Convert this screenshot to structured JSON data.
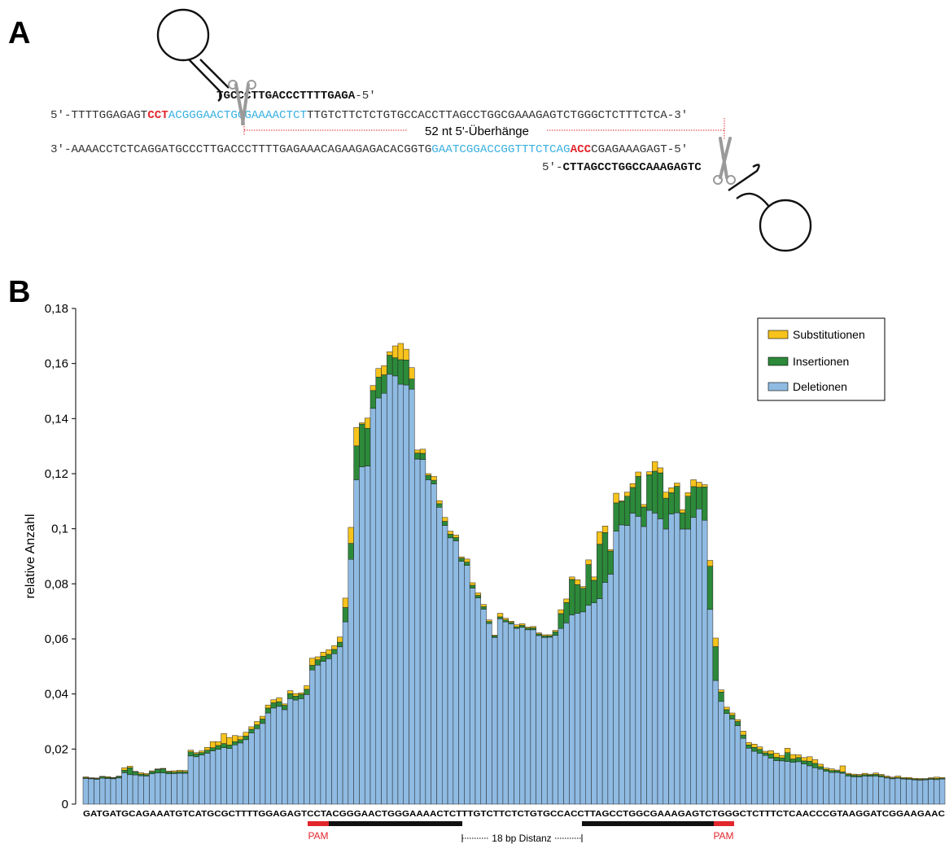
{
  "panel_a": {
    "label": "A",
    "guide_top": {
      "seq": "TGCCCTTGACCCTTTTGAGA",
      "suffix": "-5'"
    },
    "top_strand": {
      "prefix": "5'-",
      "seg1": "TTTTGGAGAGT",
      "pam": "CCT",
      "target": "ACGGGAACTGGGAAAACTCT",
      "seg2": "TTGTCTTCTCTGTGCCACCTTAGCCTGGCGAAAGAGTCTGGGCTCTTTCTCA",
      "suffix": "-3'"
    },
    "overhang_label": "52 nt 5'-Überhänge",
    "bottom_strand": {
      "prefix": "3'-",
      "seg1": "AAAACCTCTCAGGATGCCCTTGACCCTTTTGAGAAACAGAAGAGACACGGTG",
      "target": "GAATCGGACCGGTTTCTCAG",
      "pam": "ACC",
      "seg2": "CGAGAAAGAGT",
      "suffix": "-5'"
    },
    "guide_bottom": {
      "prefix": "5'-",
      "seq": "CTTAGCCTGGCCAAAGAGTC"
    }
  },
  "panel_b": {
    "label": "B",
    "base_sequence": "GATGATGCAGAAATGTCATGCGCTTTTGGAGAGTCCTACGGGAACTGGGAAAACTCTTTGTCTTCTCTGTGCCACCTTAGCCTGGCGAAAGAGTCTGGGCTCTTTCTCAACCCGTAAGGATCGGAAGAAC",
    "pam_left": "PAM",
    "pam_right": "PAM",
    "distance_label": "18 bp Distanz"
  },
  "colors": {
    "substitutions": "#f7c31c",
    "insertions": "#2c8a3a",
    "deletions": "#8fbbe3",
    "pam": "#e1262c",
    "target": "#3ab0e0"
  },
  "chart_data": {
    "type": "bar",
    "stacked": true,
    "ylabel": "relative Anzahl",
    "ylim": [
      0,
      0.18
    ],
    "yticks": [
      0,
      0.02,
      0.04,
      0.06,
      0.08,
      0.1,
      0.12,
      0.14,
      0.16,
      0.18
    ],
    "ytick_labels": [
      "0",
      "0,02",
      "0,04",
      "0,06",
      "0,08",
      "0,1",
      "0,12",
      "0,14",
      "0,16",
      "0,18"
    ],
    "legend_position": "top-right",
    "grid": false,
    "categories": "one bar per nucleotide of the base sequence",
    "series": [
      {
        "name": "Deletionen",
        "values": [
          0.0093,
          0.0092,
          0.009,
          0.0094,
          0.0093,
          0.0092,
          0.0095,
          0.0114,
          0.0107,
          0.0106,
          0.0103,
          0.0102,
          0.011,
          0.0113,
          0.0113,
          0.011,
          0.0111,
          0.0112,
          0.0112,
          0.0175,
          0.0172,
          0.0178,
          0.0185,
          0.0193,
          0.0199,
          0.0205,
          0.0202,
          0.0215,
          0.0222,
          0.0234,
          0.0258,
          0.0274,
          0.0293,
          0.0331,
          0.0349,
          0.0355,
          0.0343,
          0.0383,
          0.0378,
          0.0383,
          0.0398,
          0.0487,
          0.0505,
          0.0518,
          0.0528,
          0.0546,
          0.0571,
          0.0662,
          0.0889,
          0.1178,
          0.1225,
          0.1228,
          0.1437,
          0.1475,
          0.1492,
          0.1561,
          0.1555,
          0.1525,
          0.1522,
          0.1507,
          0.1253,
          0.1251,
          0.1178,
          0.1163,
          0.1078,
          0.1012,
          0.0967,
          0.0956,
          0.0882,
          0.0867,
          0.0784,
          0.0749,
          0.0708,
          0.0656,
          0.0605,
          0.0673,
          0.0662,
          0.0654,
          0.0638,
          0.0642,
          0.0633,
          0.0633,
          0.0612,
          0.0605,
          0.0606,
          0.0613,
          0.0638,
          0.0658,
          0.0687,
          0.0693,
          0.0698,
          0.0722,
          0.0731,
          0.0746,
          0.0805,
          0.0835,
          0.0991,
          0.1014,
          0.1012,
          0.1056,
          0.1045,
          0.1008,
          0.1067,
          0.1057,
          0.1036,
          0.0999,
          0.1053,
          0.1058,
          0.0999,
          0.0999,
          0.1041,
          0.1072,
          0.1031,
          0.0707,
          0.0449,
          0.0373,
          0.0329,
          0.0309,
          0.0285,
          0.0239,
          0.0203,
          0.0192,
          0.0184,
          0.0177,
          0.0167,
          0.0158,
          0.0157,
          0.0155,
          0.0152,
          0.0154,
          0.0146,
          0.0139,
          0.0132,
          0.0127,
          0.0119,
          0.0115,
          0.0115,
          0.0112,
          0.0102,
          0.0099,
          0.0099,
          0.0102,
          0.0101,
          0.0102,
          0.0099,
          0.0095,
          0.0092,
          0.0094,
          0.0091,
          0.009,
          0.0088,
          0.0087,
          0.0088,
          0.009,
          0.0089,
          0.0091
        ]
      },
      {
        "name": "Insertionen",
        "values": [
          0.0003,
          0.0002,
          0.0003,
          0.0005,
          0.0004,
          0.0003,
          0.0005,
          0.0009,
          0.0025,
          0.0011,
          0.0006,
          0.0005,
          0.0008,
          0.0013,
          0.0015,
          0.0007,
          0.0005,
          0.0006,
          0.0006,
          0.0015,
          0.0011,
          0.0009,
          0.0011,
          0.0012,
          0.0014,
          0.0015,
          0.0013,
          0.0012,
          0.0012,
          0.0013,
          0.0014,
          0.0014,
          0.0016,
          0.0018,
          0.0019,
          0.0017,
          0.0016,
          0.0018,
          0.0014,
          0.0016,
          0.0019,
          0.0017,
          0.0019,
          0.0019,
          0.0016,
          0.0016,
          0.0017,
          0.0052,
          0.0058,
          0.0123,
          0.0155,
          0.0137,
          0.0065,
          0.0076,
          0.0067,
          0.0069,
          0.0066,
          0.0089,
          0.0091,
          0.0037,
          0.0022,
          0.0023,
          0.0016,
          0.0013,
          0.0013,
          0.0015,
          0.0013,
          0.0012,
          0.0011,
          0.0012,
          0.0011,
          0.0009,
          0.0009,
          0.0007,
          0.0006,
          0.0007,
          0.0007,
          0.0006,
          0.0006,
          0.0007,
          0.0006,
          0.0007,
          0.0006,
          0.0006,
          0.0005,
          0.0013,
          0.0054,
          0.0074,
          0.0129,
          0.0104,
          0.0086,
          0.0148,
          0.0082,
          0.0198,
          0.0181,
          0.0084,
          0.0103,
          0.0085,
          0.0106,
          0.0094,
          0.0145,
          0.0071,
          0.0129,
          0.0152,
          0.0167,
          0.0112,
          0.0078,
          0.0096,
          0.0059,
          0.0119,
          0.0112,
          0.0079,
          0.0121,
          0.0157,
          0.0123,
          0.0034,
          0.0014,
          0.0014,
          0.0015,
          0.0012,
          0.0012,
          0.0014,
          0.0015,
          0.0009,
          0.0015,
          0.0012,
          0.0011,
          0.0032,
          0.0012,
          0.0015,
          0.0011,
          0.0017,
          0.0016,
          0.0009,
          0.0007,
          0.0007,
          0.0006,
          0.0005,
          0.0006,
          0.0006,
          0.0005,
          0.0005,
          0.0005,
          0.0006,
          0.0005,
          0.0003,
          0.0003,
          0.0003,
          0.0003,
          0.0003,
          0.0003,
          0.0003,
          0.0003,
          0.0003,
          0.0004,
          0.0003
        ]
      },
      {
        "name": "Substitutionen",
        "values": [
          0.0003,
          0.0002,
          0.0002,
          0.0002,
          0.0003,
          0.0002,
          0.0002,
          0.0009,
          0.0006,
          0.0002,
          0.0005,
          0.0004,
          0.0003,
          0.0002,
          0.0002,
          0.0003,
          0.0005,
          0.0005,
          0.0004,
          0.0006,
          0.0004,
          0.0006,
          0.001,
          0.0022,
          0.0014,
          0.0036,
          0.0027,
          0.0022,
          0.0012,
          0.0014,
          0.0009,
          0.0012,
          0.001,
          0.0011,
          0.0011,
          0.0014,
          0.0005,
          0.0011,
          0.0009,
          0.0005,
          0.0013,
          0.0026,
          0.0011,
          0.0015,
          0.0017,
          0.0013,
          0.0019,
          0.0034,
          0.0058,
          0.0067,
          0.0005,
          0.0037,
          0.0018,
          0.0031,
          0.0033,
          0.0013,
          0.0043,
          0.0059,
          0.0039,
          0.0041,
          0.0011,
          0.0015,
          0.0006,
          0.0014,
          0.0011,
          0.0014,
          0.0011,
          0.0009,
          0.0005,
          0.0011,
          0.0009,
          0.0009,
          0.0008,
          0.0006,
          0.0003,
          0.0013,
          0.0006,
          0.0004,
          0.0007,
          0.0006,
          0.0004,
          0.0005,
          0.0004,
          0.0004,
          0.0004,
          0.0005,
          0.0014,
          0.0013,
          0.0009,
          0.0018,
          0.0006,
          0.0017,
          0.0012,
          0.0045,
          0.0024,
          0.0005,
          0.0035,
          0.0003,
          0.0015,
          0.0014,
          0.0016,
          0.0009,
          0.0011,
          0.0035,
          0.0018,
          0.0022,
          0.0018,
          0.0012,
          0.0011,
          0.0013,
          0.0025,
          0.0018,
          0.0008,
          0.0021,
          0.0031,
          0.0008,
          0.0009,
          0.0008,
          0.0007,
          0.0014,
          0.0009,
          0.0012,
          0.0009,
          0.0006,
          0.0012,
          0.0015,
          0.0009,
          0.0016,
          0.0016,
          0.001,
          0.0012,
          0.0016,
          0.0014,
          0.0009,
          0.0005,
          0.0006,
          0.0003,
          0.0022,
          0.0004,
          0.0004,
          0.0004,
          0.0005,
          0.0003,
          0.0005,
          0.0004,
          0.0004,
          0.0003,
          0.0005,
          0.0003,
          0.0004,
          0.0003,
          0.0003,
          0.0002,
          0.0003,
          0.0005,
          0.0003
        ]
      }
    ]
  }
}
